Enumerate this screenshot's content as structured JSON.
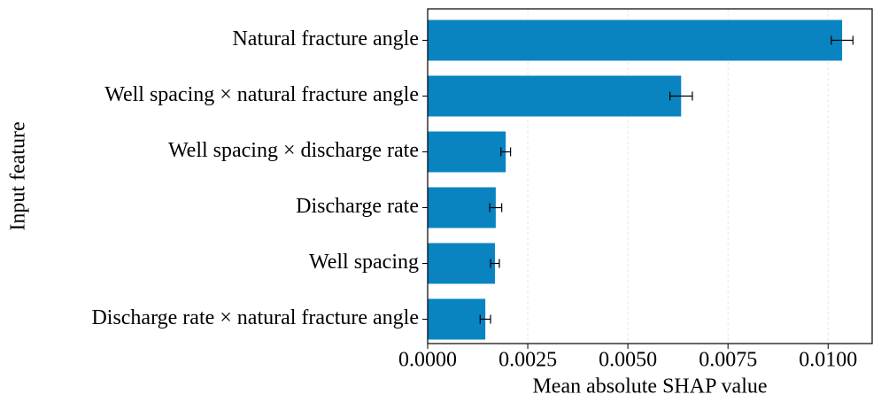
{
  "chart_data": {
    "type": "barh",
    "categories": [
      "Natural fracture angle",
      "Well spacing × natural fracture angle",
      "Well spacing × discharge rate",
      "Discharge rate",
      "Well spacing",
      "Discharge rate × natural fracture angle"
    ],
    "values": [
      0.01035,
      0.00633,
      0.00195,
      0.0017,
      0.00168,
      0.00144
    ],
    "errors": [
      0.00027,
      0.00028,
      0.00012,
      0.00015,
      0.00011,
      0.00013
    ],
    "color": "#0a84c1",
    "xlabel": "Mean absolute SHAP value",
    "ylabel": "Input feature",
    "xlim": [
      0,
      0.0111
    ],
    "xticks": [
      {
        "value": 0,
        "label": "0.0000"
      },
      {
        "value": 0.0025,
        "label": "0.0025"
      },
      {
        "value": 0.005,
        "label": "0.0050"
      },
      {
        "value": 0.0075,
        "label": "0.0075"
      },
      {
        "value": 0.01,
        "label": "0.0100"
      }
    ],
    "grid": true
  }
}
